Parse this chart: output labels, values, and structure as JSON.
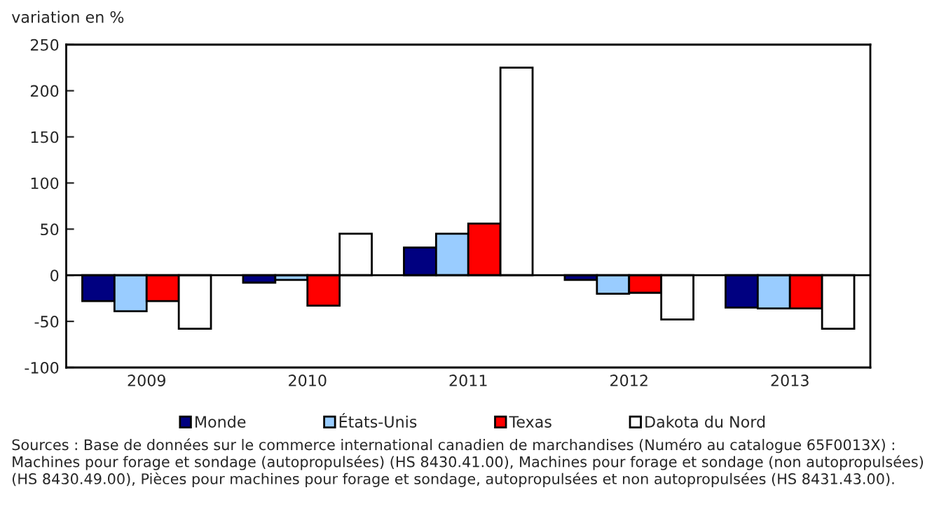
{
  "chart_data": {
    "type": "bar",
    "ylabel": "variation en %",
    "categories": [
      "2009",
      "2010",
      "2011",
      "2012",
      "2013"
    ],
    "series": [
      {
        "name": "Monde",
        "color": "#000080",
        "values": [
          -28,
          -8,
          30,
          -5,
          -35
        ]
      },
      {
        "name": "États-Unis",
        "color": "#99ccff",
        "values": [
          -39,
          -5,
          45,
          -20,
          -36
        ]
      },
      {
        "name": "Texas",
        "color": "#ff0000",
        "values": [
          -28,
          -33,
          56,
          -19,
          -36
        ]
      },
      {
        "name": "Dakota du Nord",
        "color": "#ffffff",
        "values": [
          -58,
          45,
          225,
          -48,
          -58
        ]
      }
    ],
    "ylim": [
      -100,
      250
    ],
    "yticks": [
      -100,
      -50,
      0,
      50,
      100,
      150,
      200,
      250
    ],
    "grid": false,
    "legend": "bottom",
    "ref_lines": [
      {
        "axis": "y",
        "value": 0,
        "color": "#000000"
      }
    ],
    "annotations": [
      "Sources : Base de données sur le commerce international canadien de marchandises (Numéro au catalogue 65F0013X) : Machines pour forage et sondage (autopropulsées) (HS 8430.41.00), Machines pour forage et sondage (non autopropulsées) (HS 8430.49.00), Pièces pour machines pour forage et sondage, autopropulsées et non autopropulsées (HS 8431.43.00)."
    ]
  }
}
